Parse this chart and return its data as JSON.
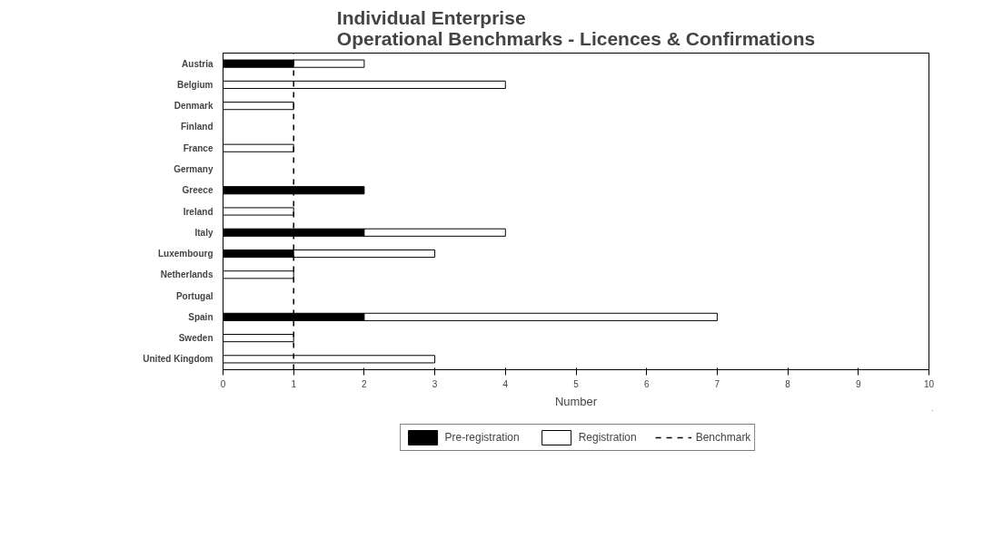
{
  "chart_data": {
    "type": "bar",
    "orientation": "horizontal",
    "stacked": true,
    "title": "Individual Enterprise\nOperational Benchmarks - Licences & Confirmations",
    "xlabel": "Number",
    "categories": [
      "Austria",
      "Belgium",
      "Denmark",
      "Finland",
      "France",
      "Germany",
      "Greece",
      "Ireland",
      "Italy",
      "Luxembourg",
      "Netherlands",
      "Portugal",
      "Spain",
      "Sweden",
      "United Kingdom"
    ],
    "series": [
      {
        "name": "Pre-registration",
        "color": "#000000",
        "values": [
          1,
          0,
          0,
          0,
          0,
          0,
          2,
          0,
          2,
          1,
          0,
          0,
          2,
          0,
          0
        ]
      },
      {
        "name": "Registration",
        "color": "#ffffff",
        "values": [
          1,
          4,
          1,
          0,
          1,
          0,
          0,
          1,
          2,
          2,
          1,
          0,
          5,
          1,
          3
        ]
      }
    ],
    "xlim": [
      0,
      10
    ],
    "xticks": [
      0,
      1,
      2,
      3,
      4,
      5,
      6,
      7,
      8,
      9,
      10
    ],
    "ref_lines": [
      {
        "axis": "x",
        "value": 1,
        "label": "Benchmark",
        "color": "#000000",
        "line_style": "dashed"
      }
    ],
    "grid": false,
    "legend": "bottom"
  }
}
